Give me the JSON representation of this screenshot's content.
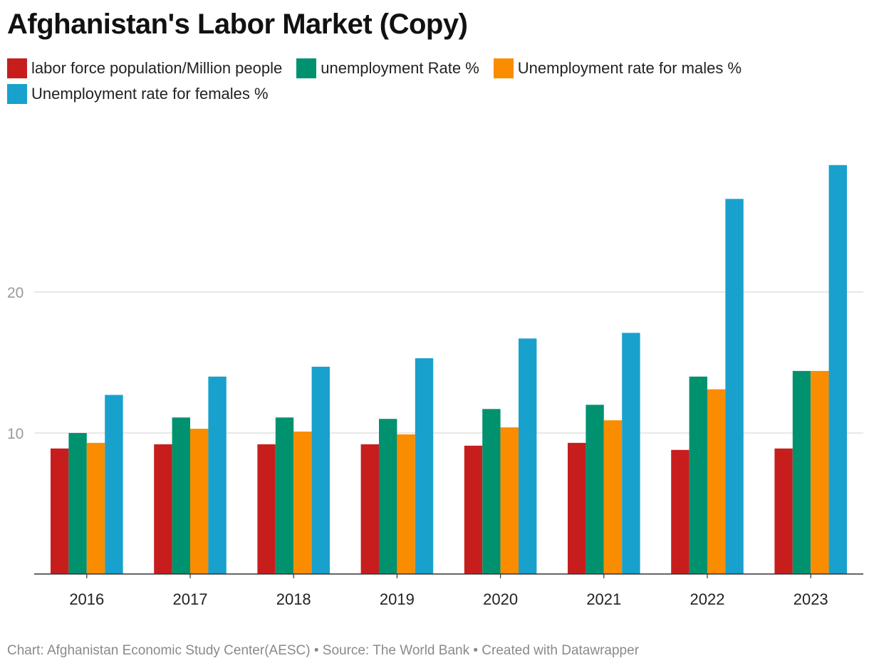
{
  "title": "Afghanistan's Labor Market (Copy)",
  "footer": "Chart: Afghanistan Economic Study Center(AESC) • Source: The World Bank • Created with Datawrapper",
  "chart_data": {
    "type": "bar",
    "title": "Afghanistan's Labor Market (Copy)",
    "categories": [
      "2016",
      "2017",
      "2018",
      "2019",
      "2020",
      "2021",
      "2022",
      "2023"
    ],
    "series": [
      {
        "name": "labor force population/Million people",
        "color": "#c71e1d",
        "values": [
          8.9,
          9.2,
          9.2,
          9.2,
          9.1,
          9.3,
          8.8,
          8.9
        ]
      },
      {
        "name": "unemployment Rate %",
        "color": "#00926f",
        "values": [
          10.0,
          11.1,
          11.1,
          11.0,
          11.7,
          12.0,
          14.0,
          14.4
        ]
      },
      {
        "name": "Unemployment rate for males %",
        "color": "#fa8c00",
        "values": [
          9.3,
          10.3,
          10.1,
          9.9,
          10.4,
          10.9,
          13.1,
          14.4
        ]
      },
      {
        "name": "Unemployment rate for females %",
        "color": "#18a1cd",
        "values": [
          12.7,
          14.0,
          14.7,
          15.3,
          16.7,
          17.1,
          26.6,
          29.0
        ]
      }
    ],
    "yticks": [
      10,
      20
    ],
    "ylim": [
      0,
      30
    ],
    "grid": true,
    "legend": "top",
    "xlabel": "",
    "ylabel": ""
  }
}
